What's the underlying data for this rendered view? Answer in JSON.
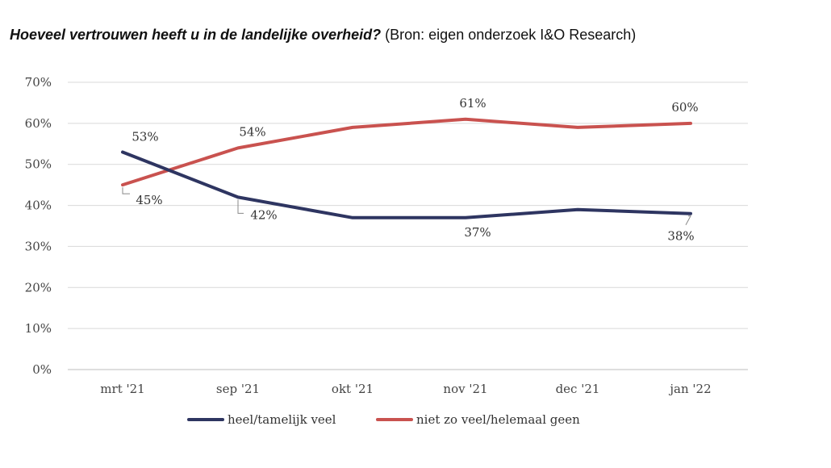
{
  "chart_data": {
    "type": "line",
    "title": "Hoeveel vertrouwen heeft u in de landelijke overheid?",
    "subtitle": "(Bron: eigen onderzoek I&O Research)",
    "categories": [
      "mrt '21",
      "sep '21",
      "okt '21",
      "nov '21",
      "dec '21",
      "jan '22"
    ],
    "ylim": [
      0,
      70
    ],
    "yticks": [
      0,
      10,
      20,
      30,
      40,
      50,
      60,
      70
    ],
    "ytick_suffix": "%",
    "grid": true,
    "legend_position": "bottom",
    "series": [
      {
        "name": "heel/tamelijk veel",
        "color": "#2e3561",
        "values": [
          53,
          42,
          37,
          37,
          39,
          38
        ],
        "labels": [
          "53%",
          "42%",
          "",
          "37%",
          "",
          "38%"
        ]
      },
      {
        "name": "niet zo veel/helemaal geen",
        "color": "#c9524f",
        "values": [
          45,
          54,
          59,
          61,
          59,
          60
        ],
        "labels": [
          "45%",
          "54%",
          "",
          "61%",
          "",
          "60%"
        ]
      }
    ]
  }
}
